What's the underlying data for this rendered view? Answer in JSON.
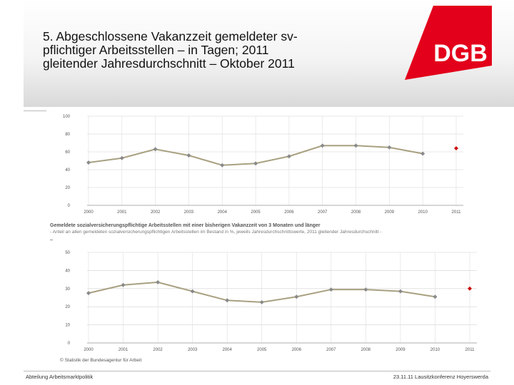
{
  "slide": {
    "title": "5. Abgeschlossene Vakanzzeit gemeldeter sv-\n pflichtiger Arbeitsstellen – in Tagen; 2011\n gleitender Jahresdurchschnitt – Oktober 2011",
    "logo_text": "DGB",
    "brand_color": "#e3001b",
    "footer_left": "Abteilung Arbeitsmarktpolitik",
    "footer_right": "23.11.11 Lausitzkonferenz Hoyerswerda"
  },
  "captions": {
    "chart2_title": "Gemeldete sozialversicherungspflichtige Arbeitsstellen mit einer bisherigen Vakanzzeit von 3 Monaten und länger",
    "chart2_subtitle": "- Anteil an allen gemeldeten sozialversicherungspflichtigen Arbeitsstellen im Bestand in %, jeweils Jahresdurchschnittswerte, 2011 gleitender Jahresdurchschnitt -",
    "source": "© Statistik der Bundesagentur für Arbeit"
  },
  "chart_data": [
    {
      "type": "line",
      "categories": [
        "2000",
        "2001",
        "2002",
        "2003",
        "2004",
        "2005",
        "2006",
        "2007",
        "2008",
        "2009",
        "2010",
        "2011"
      ],
      "values": [
        48,
        53,
        63,
        56,
        45,
        47,
        55,
        67,
        67,
        65,
        58,
        64
      ],
      "highlight_last": true,
      "ylim": [
        0,
        100
      ],
      "yticks": [
        "0",
        "20",
        "40",
        "60",
        "80",
        "100"
      ],
      "grid": true,
      "line_color": "#a8a080",
      "marker_color": "#8a8a8a",
      "highlight_color": "#cc1111"
    },
    {
      "type": "line",
      "categories": [
        "2000",
        "2001",
        "2002",
        "2003",
        "2004",
        "2005",
        "2006",
        "2007",
        "2008",
        "2009",
        "2010",
        "2011"
      ],
      "values": [
        27.5,
        32,
        33.5,
        28.5,
        23.5,
        22.5,
        25.5,
        29.5,
        29.5,
        28.5,
        25.5,
        30
      ],
      "highlight_last": true,
      "ylim": [
        0,
        50
      ],
      "yticks": [
        "0",
        "10",
        "20",
        "30",
        "40",
        "50"
      ],
      "grid": true,
      "line_color": "#a8a080",
      "marker_color": "#8a8a8a",
      "highlight_color": "#cc1111"
    }
  ]
}
